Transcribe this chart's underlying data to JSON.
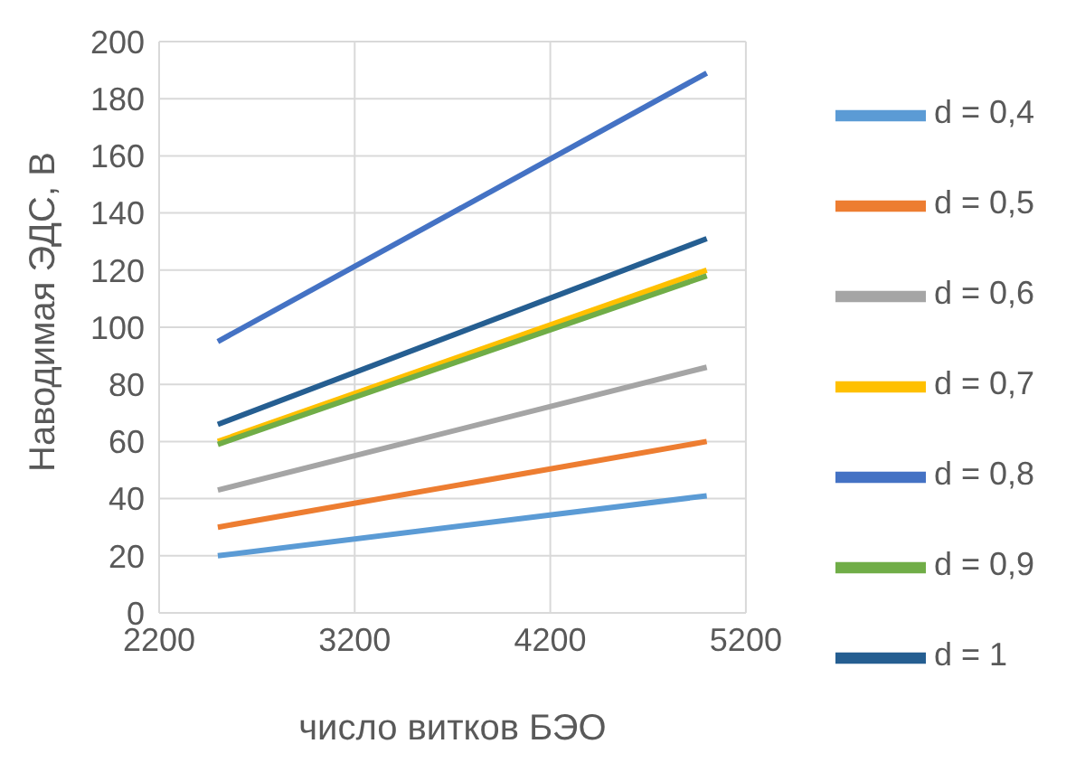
{
  "chart_data": {
    "type": "line",
    "xlabel": "число витков БЭО",
    "ylabel": "Наводимая ЭДС, В",
    "x": [
      2500,
      5000
    ],
    "xlim": [
      2200,
      5200
    ],
    "xticks": [
      2200,
      3200,
      4200,
      5200
    ],
    "ylim": [
      0,
      200
    ],
    "yticks": [
      0,
      20,
      40,
      60,
      80,
      100,
      120,
      140,
      160,
      180,
      200
    ],
    "grid": true,
    "legend": "right",
    "marker": "none",
    "line_style": "solid",
    "series": [
      {
        "name": "d = 0,4",
        "color": "#5b9bd5",
        "values": [
          20,
          41
        ]
      },
      {
        "name": "d = 0,5",
        "color": "#ed7d31",
        "values": [
          30,
          60
        ]
      },
      {
        "name": "d = 0,6",
        "color": "#a5a5a5",
        "values": [
          43,
          86
        ]
      },
      {
        "name": "d = 0,7",
        "color": "#ffc000",
        "values": [
          60,
          120
        ]
      },
      {
        "name": "d = 0,8",
        "color": "#4472c4",
        "values": [
          95,
          189
        ]
      },
      {
        "name": "d = 0,9",
        "color": "#70ad47",
        "values": [
          59,
          118
        ]
      },
      {
        "name": "d = 1",
        "color": "#255e91",
        "values": [
          66,
          131
        ]
      }
    ]
  }
}
